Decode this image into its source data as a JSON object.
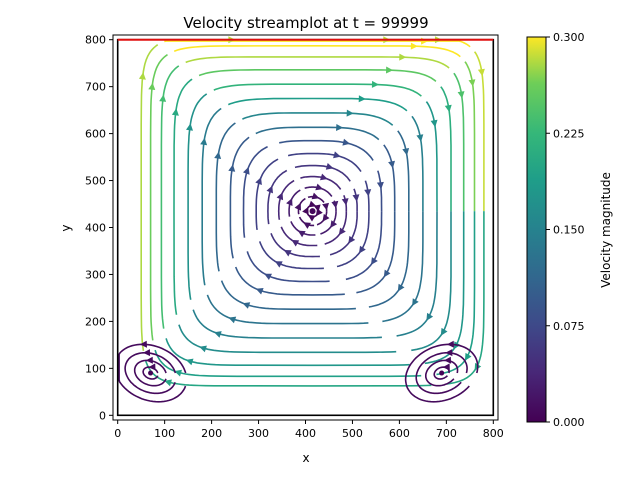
{
  "chart_data": {
    "type": "streamplot",
    "title": "Velocity streamplot at t = 99999",
    "xlabel": "x",
    "ylabel": "y",
    "xlim": [
      -10,
      810
    ],
    "ylim": [
      -10,
      810
    ],
    "xticks": [
      "0",
      "100",
      "200",
      "300",
      "400",
      "500",
      "600",
      "700",
      "800"
    ],
    "yticks": [
      "0",
      "100",
      "200",
      "300",
      "400",
      "500",
      "600",
      "700",
      "800"
    ],
    "colorbar": {
      "label": "Velocity magnitude",
      "min": 0.0,
      "max": 0.3,
      "ticks": [
        "0.000",
        "0.075",
        "0.150",
        "0.225",
        "0.300"
      ],
      "colormap": "viridis"
    },
    "lid": {
      "y": 800,
      "x_range": [
        0,
        800
      ],
      "color": "#e01010",
      "speed": 0.3
    },
    "primary_vortex_center": [
      415,
      435
    ],
    "secondary_vortices": [
      {
        "name": "bottom-left",
        "center": [
          70,
          90
        ]
      },
      {
        "name": "bottom-right",
        "center": [
          690,
          90
        ]
      }
    ]
  }
}
